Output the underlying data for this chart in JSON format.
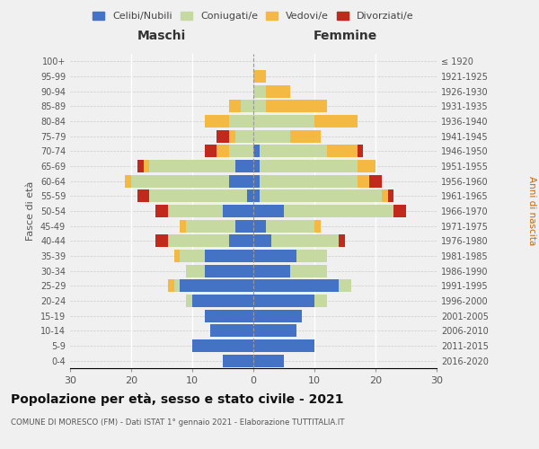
{
  "age_groups": [
    "0-4",
    "5-9",
    "10-14",
    "15-19",
    "20-24",
    "25-29",
    "30-34",
    "35-39",
    "40-44",
    "45-49",
    "50-54",
    "55-59",
    "60-64",
    "65-69",
    "70-74",
    "75-79",
    "80-84",
    "85-89",
    "90-94",
    "95-99",
    "100+"
  ],
  "birth_years": [
    "2016-2020",
    "2011-2015",
    "2006-2010",
    "2001-2005",
    "1996-2000",
    "1991-1995",
    "1986-1990",
    "1981-1985",
    "1976-1980",
    "1971-1975",
    "1966-1970",
    "1961-1965",
    "1956-1960",
    "1951-1955",
    "1946-1950",
    "1941-1945",
    "1936-1940",
    "1931-1935",
    "1926-1930",
    "1921-1925",
    "≤ 1920"
  ],
  "maschi": {
    "celibi": [
      5,
      10,
      7,
      8,
      10,
      12,
      8,
      8,
      4,
      3,
      5,
      1,
      4,
      3,
      0,
      0,
      0,
      0,
      0,
      0,
      0
    ],
    "coniugati": [
      0,
      0,
      0,
      0,
      1,
      1,
      3,
      4,
      10,
      8,
      9,
      16,
      16,
      14,
      4,
      3,
      4,
      2,
      0,
      0,
      0
    ],
    "vedovi": [
      0,
      0,
      0,
      0,
      0,
      1,
      0,
      1,
      0,
      1,
      0,
      0,
      1,
      1,
      2,
      1,
      4,
      2,
      0,
      0,
      0
    ],
    "divorziati": [
      0,
      0,
      0,
      0,
      0,
      0,
      0,
      0,
      2,
      0,
      2,
      2,
      0,
      1,
      2,
      2,
      0,
      0,
      0,
      0,
      0
    ]
  },
  "femmine": {
    "nubili": [
      5,
      10,
      7,
      8,
      10,
      14,
      6,
      7,
      3,
      2,
      5,
      1,
      1,
      1,
      1,
      0,
      0,
      0,
      0,
      0,
      0
    ],
    "coniugate": [
      0,
      0,
      0,
      0,
      2,
      2,
      6,
      5,
      11,
      8,
      18,
      20,
      16,
      16,
      11,
      6,
      10,
      2,
      2,
      0,
      0
    ],
    "vedove": [
      0,
      0,
      0,
      0,
      0,
      0,
      0,
      0,
      0,
      1,
      0,
      1,
      2,
      3,
      5,
      5,
      7,
      10,
      4,
      2,
      0
    ],
    "divorziate": [
      0,
      0,
      0,
      0,
      0,
      0,
      0,
      0,
      1,
      0,
      2,
      1,
      2,
      0,
      1,
      0,
      0,
      0,
      0,
      0,
      0
    ]
  },
  "colors": {
    "celibi": "#4472C4",
    "coniugati": "#C5D9A0",
    "vedovi": "#F4B942",
    "divorziati": "#C0291B"
  },
  "xlim": 30,
  "title": "Popolazione per età, sesso e stato civile - 2021",
  "subtitle": "COMUNE DI MORESCO (FM) - Dati ISTAT 1° gennaio 2021 - Elaborazione TUTTITALIA.IT",
  "ylabel_left": "Fasce di età",
  "ylabel_right": "Anni di nascita",
  "xlabel_left": "Maschi",
  "xlabel_right": "Femmine",
  "bg_color": "#f0f0f0"
}
